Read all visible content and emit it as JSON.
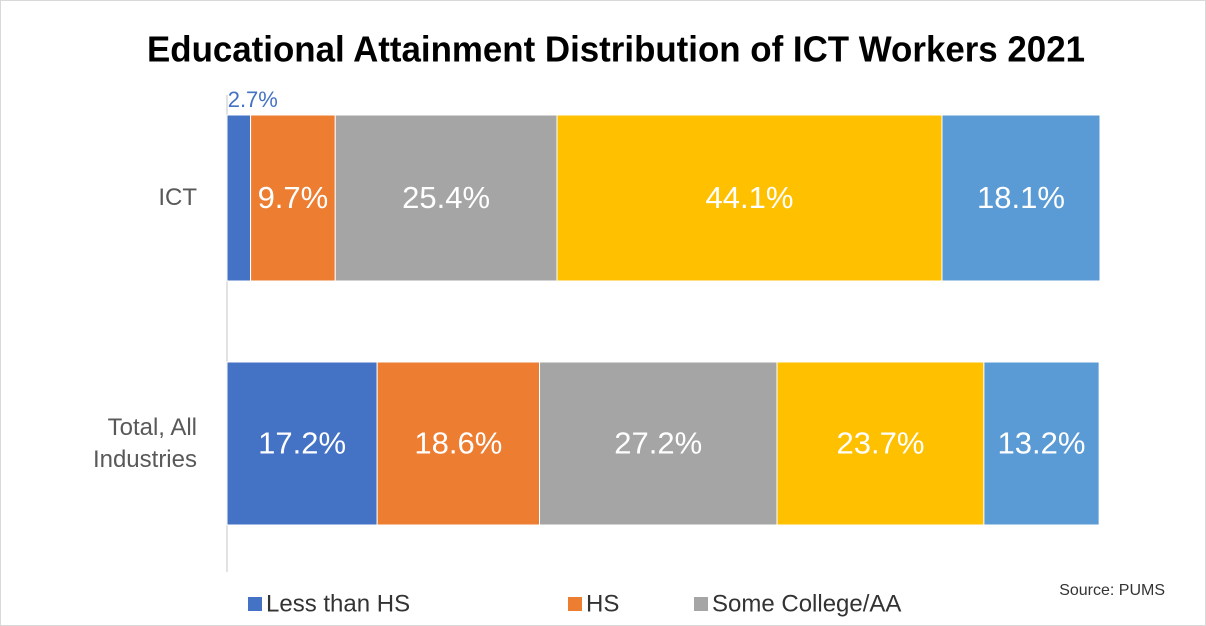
{
  "chart_data": {
    "type": "stacked-barh",
    "title": "Educational Attainment Distribution of ICT Workers 2021",
    "categories": [
      "ICT",
      "Total, All Industries"
    ],
    "series": [
      {
        "name": "Less than HS",
        "color": "#4472c4",
        "values": [
          2.7,
          17.2
        ],
        "value_labels": [
          "2.7%",
          "17.2%"
        ]
      },
      {
        "name": "HS",
        "color": "#ed7d31",
        "values": [
          9.7,
          18.6
        ],
        "value_labels": [
          "9.7%",
          "18.6%"
        ]
      },
      {
        "name": "Some College/AA",
        "color": "#a5a5a5",
        "values": [
          25.4,
          27.2
        ],
        "value_labels": [
          "25.4%",
          "27.2%"
        ]
      },
      {
        "color": "#ffc000",
        "values": [
          44.1,
          23.7
        ],
        "value_labels": [
          "44.1%",
          "23.7%"
        ]
      },
      {
        "color": "#5b9bd5",
        "values": [
          18.1,
          13.2
        ],
        "value_labels": [
          "18.1%",
          "13.2%"
        ]
      }
    ],
    "xlim": [
      0,
      100
    ],
    "annotation": "Source: PUMS"
  }
}
